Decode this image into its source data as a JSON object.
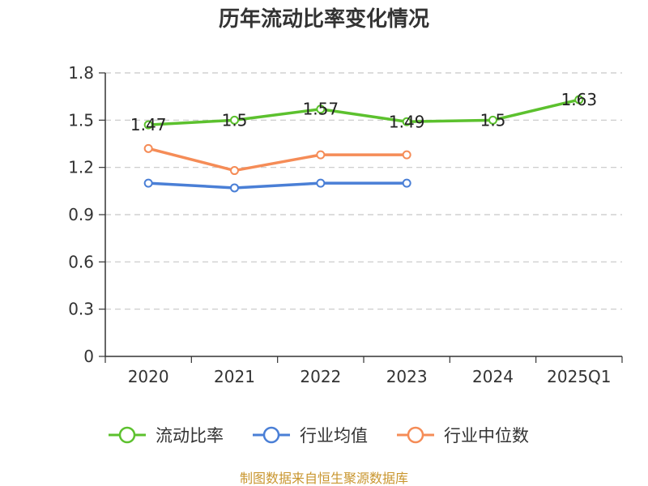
{
  "chart_data": {
    "type": "line",
    "title": "历年流动比率变化情况",
    "categories": [
      "2020",
      "2021",
      "2022",
      "2023",
      "2024",
      "2025Q1"
    ],
    "ylim": [
      0,
      1.8
    ],
    "yticks": [
      "0",
      "0.3",
      "0.6",
      "0.9",
      "1.2",
      "1.5",
      "1.8"
    ],
    "grid": true,
    "legend_position": "bottom",
    "series": [
      {
        "name": "流动比率",
        "color": "#5cc12e",
        "values": [
          1.47,
          1.5,
          1.57,
          1.49,
          1.5,
          1.63
        ],
        "labels": [
          "1.47",
          "1.5",
          "1.57",
          "1.49",
          "1.5",
          "1.63"
        ]
      },
      {
        "name": "行业均值",
        "color": "#4a7fd6",
        "values": [
          1.1,
          1.07,
          1.1,
          1.1,
          null,
          null
        ]
      },
      {
        "name": "行业中位数",
        "color": "#f58c57",
        "values": [
          1.32,
          1.18,
          1.28,
          1.28,
          null,
          null
        ]
      }
    ]
  },
  "footer": "制图数据来自恒生聚源数据库"
}
